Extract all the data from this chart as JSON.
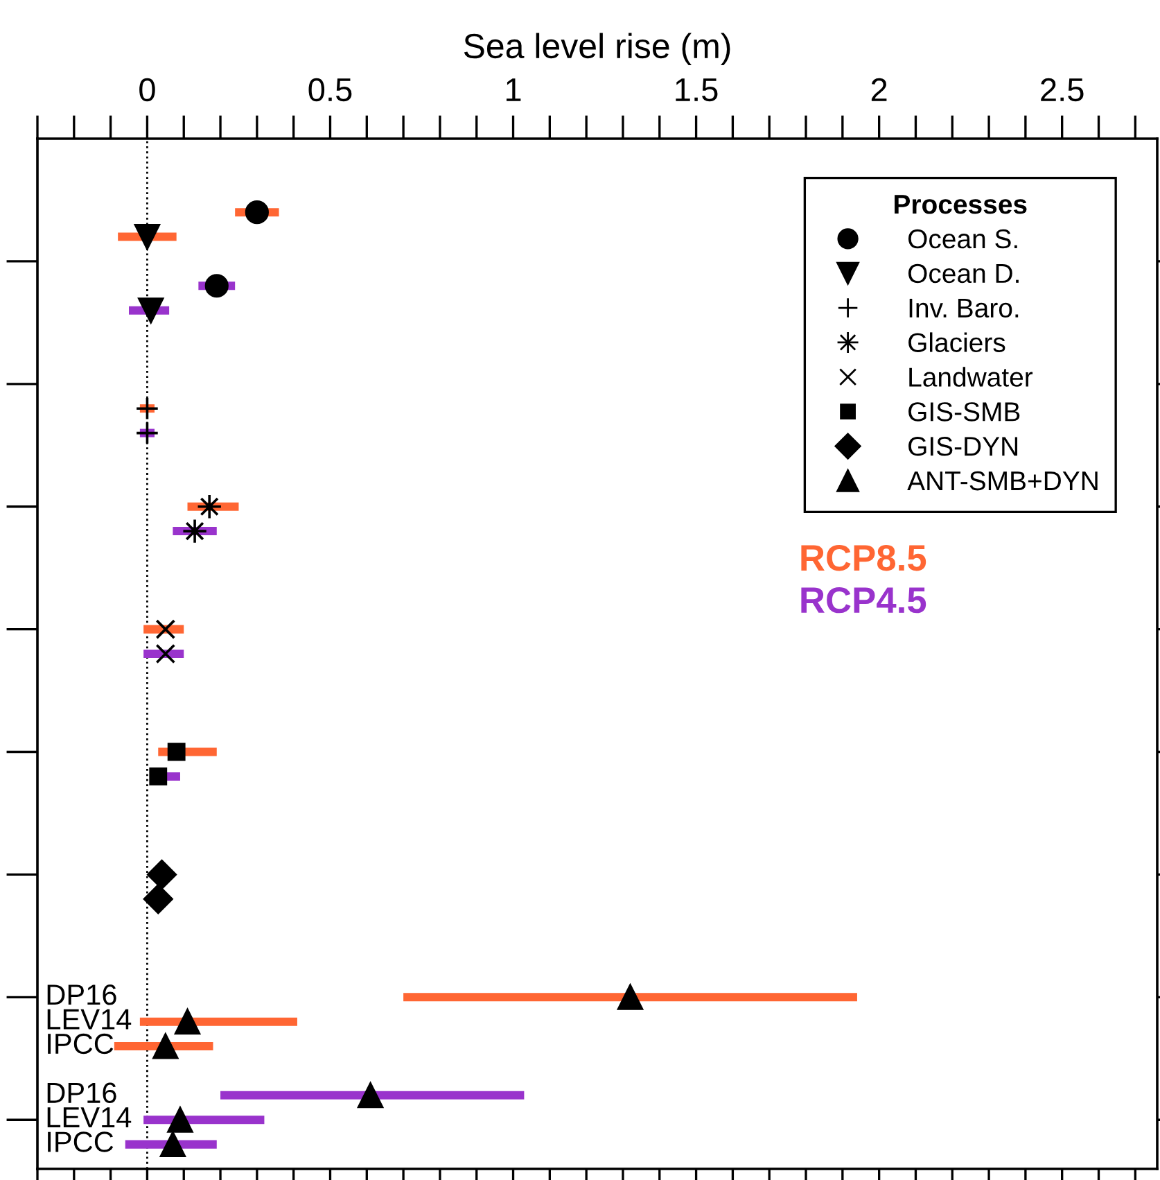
{
  "chart_data": {
    "type": "scatter",
    "orientation": "horizontal",
    "xlabel": "Sea level rise (m)",
    "legend_title": "Processes",
    "legend": "top right",
    "xlim": [
      -0.3,
      2.76
    ],
    "xticks": [
      0,
      0.5,
      1,
      1.5,
      2,
      2.5
    ],
    "categories": [
      null,
      null,
      null,
      null,
      null,
      null,
      null,
      null,
      null,
      null,
      null,
      null,
      null,
      null,
      null,
      null,
      null,
      null,
      null,
      null,
      null,
      null,
      null,
      null,
      null,
      null,
      null,
      null,
      null,
      null,
      null,
      null,
      null,
      null,
      null,
      "DP16",
      "LEV14",
      "IPCC",
      null,
      "DP16",
      "LEV14",
      "IPCC",
      null
    ],
    "ref_lines": [
      {
        "axis": "x",
        "value": 0,
        "color": "#000000",
        "line_style": "dotted"
      }
    ],
    "series": [
      {
        "name": "Ocean S.",
        "marker": "circle",
        "color": "#000000",
        "values": [
          null,
          null,
          null,
          0.3,
          null,
          null,
          0.19,
          null,
          null,
          null,
          null,
          null,
          null,
          null,
          null,
          null,
          null,
          null,
          null,
          null,
          null,
          null,
          null,
          null,
          null,
          null,
          null,
          null,
          null,
          null,
          null,
          null,
          null,
          null,
          null,
          null,
          null,
          null,
          null,
          null,
          null,
          null,
          null
        ]
      },
      {
        "name": "Ocean D.",
        "marker": "triangle_down",
        "color": "#000000",
        "values": [
          null,
          null,
          null,
          null,
          0.0,
          null,
          null,
          0.01,
          null,
          null,
          null,
          null,
          null,
          null,
          null,
          null,
          null,
          null,
          null,
          null,
          null,
          null,
          null,
          null,
          null,
          null,
          null,
          null,
          null,
          null,
          null,
          null,
          null,
          null,
          null,
          null,
          null,
          null,
          null,
          null,
          null,
          null,
          null
        ]
      },
      {
        "name": "Inv. Baro.",
        "marker": "plus",
        "color": "#000000",
        "values": [
          null,
          null,
          null,
          null,
          null,
          null,
          null,
          null,
          null,
          null,
          null,
          0.0,
          0.0,
          null,
          null,
          null,
          null,
          null,
          null,
          null,
          null,
          null,
          null,
          null,
          null,
          null,
          null,
          null,
          null,
          null,
          null,
          null,
          null,
          null,
          null,
          null,
          null,
          null,
          null,
          null,
          null,
          null,
          null
        ]
      },
      {
        "name": "Glaciers",
        "marker": "star",
        "color": "#000000",
        "values": [
          null,
          null,
          null,
          null,
          null,
          null,
          null,
          null,
          null,
          null,
          null,
          null,
          null,
          null,
          null,
          0.17,
          0.13,
          null,
          null,
          null,
          null,
          null,
          null,
          null,
          null,
          null,
          null,
          null,
          null,
          null,
          null,
          null,
          null,
          null,
          null,
          null,
          null,
          null,
          null,
          null,
          null,
          null,
          null
        ]
      },
      {
        "name": "Landwater",
        "marker": "cross",
        "color": "#000000",
        "values": [
          null,
          null,
          null,
          null,
          null,
          null,
          null,
          null,
          null,
          null,
          null,
          null,
          null,
          null,
          null,
          null,
          null,
          null,
          null,
          null,
          0.05,
          0.05,
          null,
          null,
          null,
          null,
          null,
          null,
          null,
          null,
          null,
          null,
          null,
          null,
          null,
          null,
          null,
          null,
          null,
          null,
          null,
          null,
          null
        ]
      },
      {
        "name": "GIS-SMB",
        "marker": "square",
        "color": "#000000",
        "values": [
          null,
          null,
          null,
          null,
          null,
          null,
          null,
          null,
          null,
          null,
          null,
          null,
          null,
          null,
          null,
          null,
          null,
          null,
          null,
          null,
          null,
          null,
          null,
          null,
          null,
          0.08,
          0.03,
          null,
          null,
          null,
          null,
          null,
          null,
          null,
          null,
          null,
          null,
          null,
          null,
          null,
          null,
          null,
          null
        ]
      },
      {
        "name": "GIS-DYN",
        "marker": "diamond",
        "color": "#000000",
        "values": [
          null,
          null,
          null,
          null,
          null,
          null,
          null,
          null,
          null,
          null,
          null,
          null,
          null,
          null,
          null,
          null,
          null,
          null,
          null,
          null,
          null,
          null,
          null,
          null,
          null,
          null,
          null,
          null,
          null,
          null,
          0.04,
          0.03,
          null,
          null,
          null,
          null,
          null,
          null,
          null,
          null,
          null,
          null,
          null
        ]
      },
      {
        "name": "ANT-SMB+DYN",
        "marker": "triangle",
        "color": "#000000",
        "values": [
          null,
          null,
          null,
          null,
          null,
          null,
          null,
          null,
          null,
          null,
          null,
          null,
          null,
          null,
          null,
          null,
          null,
          null,
          null,
          null,
          null,
          null,
          null,
          null,
          null,
          null,
          null,
          null,
          null,
          null,
          null,
          null,
          null,
          null,
          null,
          1.32,
          0.11,
          0.05,
          null,
          0.61,
          0.09,
          0.07,
          null
        ]
      },
      {
        "name": "RCP8.5",
        "type": "bar",
        "color": "#ff6633",
        "values": [
          null,
          null,
          null,
          0.12,
          0.16,
          null,
          null,
          null,
          null,
          null,
          null,
          0.04,
          null,
          null,
          null,
          0.14,
          null,
          null,
          null,
          null,
          0.11,
          null,
          null,
          null,
          null,
          0.16,
          null,
          null,
          null,
          null,
          null,
          null,
          null,
          null,
          null,
          1.24,
          0.43,
          0.27,
          null,
          null,
          null,
          null,
          null
        ],
        "base": [
          null,
          null,
          null,
          0.24,
          -0.08,
          null,
          null,
          null,
          null,
          null,
          null,
          -0.02,
          null,
          null,
          null,
          0.11,
          null,
          null,
          null,
          null,
          -0.01,
          null,
          null,
          null,
          null,
          0.03,
          null,
          null,
          null,
          null,
          null,
          null,
          null,
          null,
          null,
          0.7,
          -0.02,
          -0.09,
          null,
          null,
          null,
          null,
          null
        ]
      },
      {
        "name": "RCP4.5",
        "type": "bar",
        "color": "#9933cc",
        "values": [
          null,
          null,
          null,
          null,
          null,
          null,
          0.1,
          0.11,
          null,
          null,
          null,
          null,
          0.04,
          null,
          null,
          null,
          0.12,
          null,
          null,
          null,
          null,
          0.11,
          null,
          null,
          null,
          null,
          0.08,
          null,
          null,
          null,
          null,
          null,
          null,
          null,
          null,
          null,
          null,
          null,
          null,
          0.83,
          0.33,
          0.25,
          null
        ],
        "base": [
          null,
          null,
          null,
          null,
          null,
          null,
          0.14,
          -0.05,
          null,
          null,
          null,
          null,
          -0.02,
          null,
          null,
          null,
          0.07,
          null,
          null,
          null,
          null,
          -0.01,
          null,
          null,
          null,
          null,
          0.01,
          null,
          null,
          null,
          null,
          null,
          null,
          null,
          null,
          null,
          null,
          null,
          null,
          0.2,
          -0.01,
          -0.06,
          null
        ]
      }
    ]
  }
}
